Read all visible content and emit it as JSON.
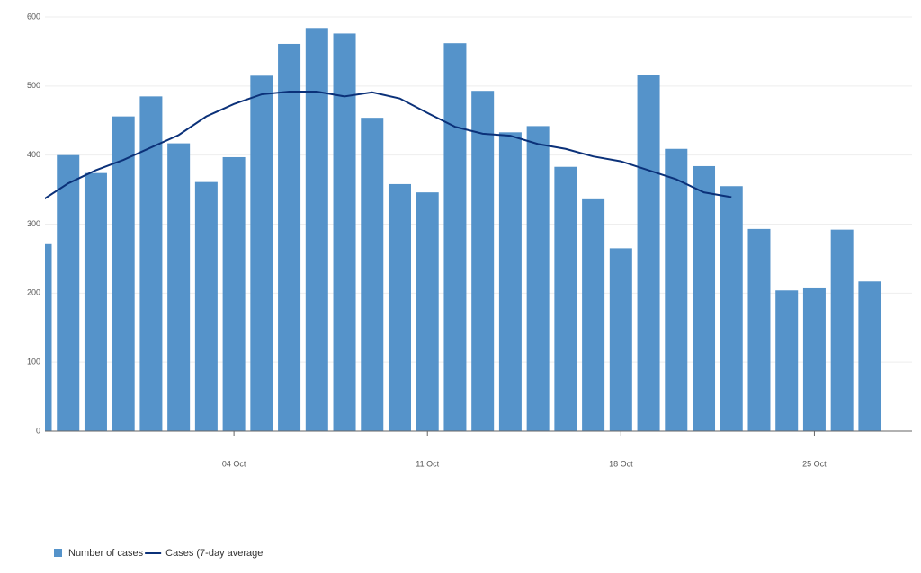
{
  "chart_data": {
    "type": "bar_line",
    "categories": [
      null,
      null,
      null,
      null,
      null,
      null,
      null,
      "04 Oct",
      null,
      null,
      null,
      null,
      null,
      null,
      "11 Oct",
      null,
      null,
      null,
      null,
      null,
      null,
      "18 Oct",
      null,
      null,
      null,
      null,
      null,
      null,
      "25 Oct",
      null,
      null
    ],
    "series": [
      {
        "name": "Number of cases",
        "type": "bar",
        "color": "#5593ca",
        "values": [
          271,
          400,
          374,
          456,
          485,
          417,
          361,
          397,
          515,
          561,
          584,
          576,
          454,
          358,
          346,
          562,
          493,
          433,
          442,
          383,
          336,
          265,
          516,
          409,
          384,
          355,
          293,
          204,
          207,
          292,
          217
        ]
      },
      {
        "name": "Cases (7-day average",
        "type": "line",
        "color": "#0b3179",
        "values": [
          333,
          359,
          378,
          393,
          411,
          429,
          456,
          474,
          488,
          492,
          492,
          485,
          491,
          482,
          461,
          441,
          431,
          428,
          416,
          409,
          398,
          391,
          378,
          365,
          346,
          339,
          null,
          null,
          null,
          null,
          null
        ]
      }
    ],
    "ylim": [
      0,
      600
    ],
    "yticks": [
      0,
      100,
      200,
      300,
      400,
      500,
      600
    ],
    "grid": true
  }
}
